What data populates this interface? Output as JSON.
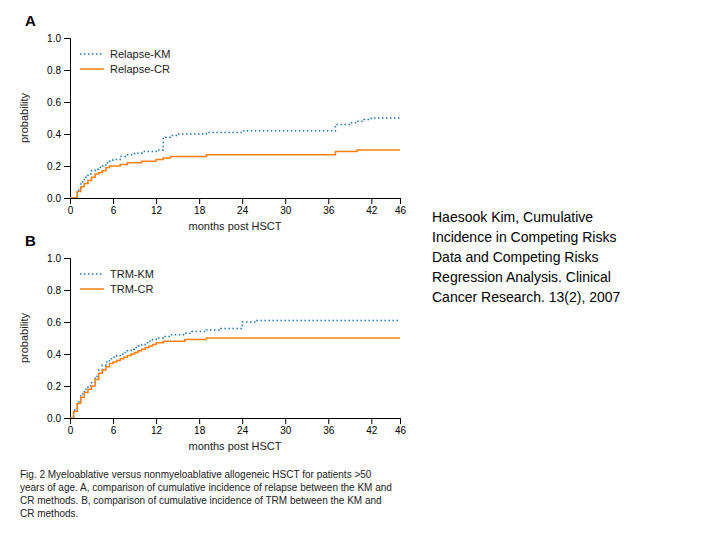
{
  "chart_data": [
    {
      "type": "step",
      "title": "A",
      "x_label": "months post HSCT",
      "y_label": "probability",
      "xlim": [
        0,
        46
      ],
      "ylim": [
        0.0,
        1.0
      ],
      "xticks": [
        0,
        6,
        12,
        18,
        24,
        30,
        36,
        42,
        46
      ],
      "yticks": [
        {
          "value": 0.0,
          "label": "0.0"
        },
        0.2,
        0.4,
        0.6,
        0.8,
        {
          "value": 1.0,
          "label": "1.0"
        }
      ],
      "grid": false,
      "legend": "upper-left",
      "x": [
        0,
        1,
        1.5,
        2,
        2.5,
        3,
        3.5,
        4,
        4.5,
        5,
        5.5,
        6,
        7,
        8,
        9,
        10,
        11,
        12,
        13,
        14,
        15,
        16,
        17,
        18,
        19,
        20,
        21,
        22,
        23,
        24,
        25,
        26,
        27,
        28,
        29,
        30,
        31,
        32,
        33,
        34,
        35,
        36,
        37,
        38,
        39,
        40,
        41,
        42,
        43,
        44,
        45,
        46
      ],
      "series": [
        {
          "name": "Relapse-KM",
          "line_style": "dotted",
          "values": [
            0,
            0.05,
            0.1,
            0.13,
            0.15,
            0.17,
            0.18,
            0.19,
            0.2,
            0.22,
            0.23,
            0.24,
            0.26,
            0.27,
            0.28,
            0.29,
            0.29,
            0.3,
            0.38,
            0.39,
            0.4,
            0.4,
            0.4,
            0.4,
            0.41,
            0.41,
            0.41,
            0.41,
            0.41,
            0.42,
            0.42,
            0.42,
            0.42,
            0.42,
            0.42,
            0.42,
            0.42,
            0.42,
            0.42,
            0.42,
            0.42,
            0.42,
            0.46,
            0.46,
            0.47,
            0.48,
            0.49,
            0.5,
            0.5,
            0.5,
            0.5,
            0.5
          ]
        },
        {
          "name": "Relapse-CR",
          "line_style": "solid",
          "values": [
            0,
            0.04,
            0.07,
            0.09,
            0.11,
            0.13,
            0.15,
            0.16,
            0.17,
            0.19,
            0.2,
            0.2,
            0.21,
            0.22,
            0.22,
            0.23,
            0.23,
            0.24,
            0.25,
            0.26,
            0.26,
            0.26,
            0.26,
            0.26,
            0.27,
            0.27,
            0.27,
            0.27,
            0.27,
            0.27,
            0.27,
            0.27,
            0.27,
            0.27,
            0.27,
            0.27,
            0.27,
            0.27,
            0.27,
            0.27,
            0.27,
            0.27,
            0.29,
            0.29,
            0.29,
            0.3,
            0.3,
            0.3,
            0.3,
            0.3,
            0.3,
            0.3
          ]
        }
      ],
      "annotations": [
        "Haesook Kim, Cumulative\nIncidence in Competing Risks\nData and Competing Risks\nRegression Analysis. Clinical\nCancer Research. 13(2), 2007",
        "Fig. 2  Myeloablative versus nonmyeloablative allogeneic HSCT for patients >50\nyears of age. A, comparison of cumulative incidence of relapse between the KM and\nCR methods. B, comparison of cumulative incidence of TRM between the KM and\nCR methods."
      ]
    },
    {
      "type": "step",
      "title": "B",
      "x_label": "months post HSCT",
      "y_label": "probability",
      "xlim": [
        0,
        46
      ],
      "ylim": [
        0.0,
        1.0
      ],
      "xticks": [
        0,
        6,
        12,
        18,
        24,
        30,
        36,
        42,
        46
      ],
      "yticks": [
        {
          "value": 0.0,
          "label": "0.0"
        },
        0.2,
        0.4,
        0.6,
        0.8,
        {
          "value": 1.0,
          "label": "1.0"
        }
      ],
      "grid": false,
      "legend": "upper-left",
      "x": [
        0,
        0.5,
        1,
        1.5,
        2,
        2.5,
        3,
        3.5,
        4,
        4.5,
        5,
        5.5,
        6,
        6.5,
        7,
        7.5,
        8,
        8.5,
        9,
        9.5,
        10,
        10.5,
        11,
        11.5,
        12,
        13,
        14,
        15,
        16,
        17,
        18,
        19,
        20,
        21,
        22,
        23,
        24,
        25,
        26,
        27,
        28,
        29,
        30,
        31,
        32,
        33,
        34,
        35,
        36,
        37,
        38,
        39,
        40,
        41,
        42,
        43,
        44,
        45,
        46
      ],
      "series": [
        {
          "name": "TRM-KM",
          "line_style": "dotted",
          "values": [
            0,
            0.05,
            0.1,
            0.15,
            0.18,
            0.2,
            0.22,
            0.26,
            0.3,
            0.33,
            0.35,
            0.37,
            0.38,
            0.39,
            0.4,
            0.41,
            0.42,
            0.43,
            0.44,
            0.45,
            0.46,
            0.47,
            0.48,
            0.49,
            0.5,
            0.51,
            0.52,
            0.52,
            0.53,
            0.54,
            0.54,
            0.55,
            0.55,
            0.56,
            0.56,
            0.56,
            0.6,
            0.6,
            0.61,
            0.61,
            0.61,
            0.61,
            0.61,
            0.61,
            0.61,
            0.61,
            0.61,
            0.61,
            0.61,
            0.61,
            0.61,
            0.61,
            0.61,
            0.61,
            0.61,
            0.61,
            0.61,
            0.61,
            0.61
          ]
        },
        {
          "name": "TRM-CR",
          "line_style": "solid",
          "values": [
            0,
            0.04,
            0.09,
            0.13,
            0.16,
            0.18,
            0.2,
            0.24,
            0.28,
            0.3,
            0.32,
            0.34,
            0.35,
            0.36,
            0.37,
            0.38,
            0.39,
            0.4,
            0.41,
            0.42,
            0.43,
            0.44,
            0.45,
            0.46,
            0.47,
            0.48,
            0.48,
            0.48,
            0.49,
            0.49,
            0.49,
            0.5,
            0.5,
            0.5,
            0.5,
            0.5,
            0.5,
            0.5,
            0.5,
            0.5,
            0.5,
            0.5,
            0.5,
            0.5,
            0.5,
            0.5,
            0.5,
            0.5,
            0.5,
            0.5,
            0.5,
            0.5,
            0.5,
            0.5,
            0.5,
            0.5,
            0.5,
            0.5,
            0.5
          ]
        }
      ]
    }
  ]
}
